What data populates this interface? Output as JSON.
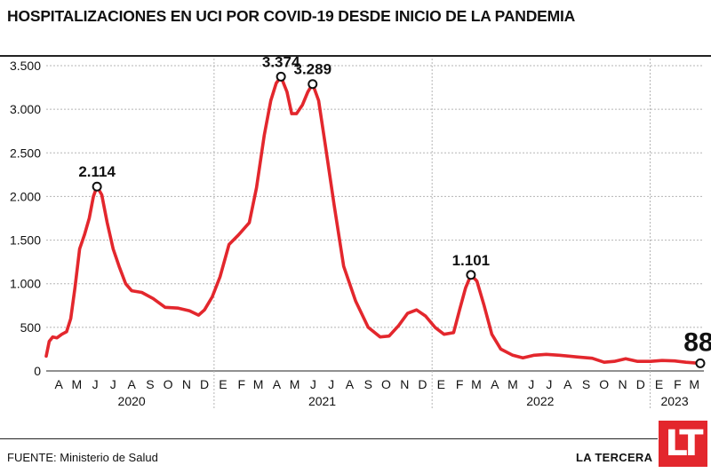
{
  "header": {
    "title": "HOSPITALIZACIONES EN UCI POR COVID-19 DESDE INICIO DE LA PANDEMIA"
  },
  "footer": {
    "source_key": "FUENTE:",
    "source_value": "Ministerio de Salud",
    "brand": "LA TERCERA",
    "logo": "LT"
  },
  "colors": {
    "line": "#e3272d",
    "grid": "#b5b5b5",
    "text": "#111111"
  },
  "chart_data": {
    "type": "line",
    "title": "HOSPITALIZACIONES EN UCI POR COVID-19 DESDE INICIO DE LA PANDEMIA",
    "ylim": [
      0,
      3500
    ],
    "yticks": [
      0,
      500,
      1000,
      1500,
      2000,
      2500,
      3000,
      3500
    ],
    "ytick_labels": [
      "0",
      "500",
      "1.000",
      "1.500",
      "2.000",
      "2.500",
      "3.000",
      "3.500"
    ],
    "xlim": [
      "2020-03-25",
      "2023-03-31"
    ],
    "month_ticks": [
      {
        "label": "A",
        "date": "2020-04-15"
      },
      {
        "label": "M",
        "date": "2020-05-15"
      },
      {
        "label": "J",
        "date": "2020-06-15"
      },
      {
        "label": "J",
        "date": "2020-07-15"
      },
      {
        "label": "A",
        "date": "2020-08-15"
      },
      {
        "label": "S",
        "date": "2020-09-15"
      },
      {
        "label": "O",
        "date": "2020-10-15"
      },
      {
        "label": "N",
        "date": "2020-11-15"
      },
      {
        "label": "D",
        "date": "2020-12-15"
      },
      {
        "label": "E",
        "date": "2021-01-15"
      },
      {
        "label": "F",
        "date": "2021-02-15"
      },
      {
        "label": "M",
        "date": "2021-03-15"
      },
      {
        "label": "A",
        "date": "2021-04-15"
      },
      {
        "label": "M",
        "date": "2021-05-15"
      },
      {
        "label": "J",
        "date": "2021-06-15"
      },
      {
        "label": "J",
        "date": "2021-07-15"
      },
      {
        "label": "A",
        "date": "2021-08-15"
      },
      {
        "label": "S",
        "date": "2021-09-15"
      },
      {
        "label": "O",
        "date": "2021-10-15"
      },
      {
        "label": "N",
        "date": "2021-11-15"
      },
      {
        "label": "D",
        "date": "2021-12-15"
      },
      {
        "label": "E",
        "date": "2022-01-15"
      },
      {
        "label": "F",
        "date": "2022-02-15"
      },
      {
        "label": "M",
        "date": "2022-03-15"
      },
      {
        "label": "A",
        "date": "2022-04-15"
      },
      {
        "label": "M",
        "date": "2022-05-15"
      },
      {
        "label": "J",
        "date": "2022-06-15"
      },
      {
        "label": "J",
        "date": "2022-07-15"
      },
      {
        "label": "A",
        "date": "2022-08-15"
      },
      {
        "label": "S",
        "date": "2022-09-15"
      },
      {
        "label": "O",
        "date": "2022-10-15"
      },
      {
        "label": "N",
        "date": "2022-11-15"
      },
      {
        "label": "D",
        "date": "2022-12-15"
      },
      {
        "label": "E",
        "date": "2023-01-15"
      },
      {
        "label": "F",
        "date": "2023-02-15"
      },
      {
        "label": "M",
        "date": "2023-03-15"
      }
    ],
    "year_labels": [
      {
        "label": "2020",
        "date": "2020-08-15"
      },
      {
        "label": "2021",
        "date": "2021-06-30"
      },
      {
        "label": "2022",
        "date": "2022-06-30"
      },
      {
        "label": "2023",
        "date": "2023-02-10"
      }
    ],
    "year_dividers": [
      "2020-12-31",
      "2021-12-31",
      "2022-12-31"
    ],
    "grid": true,
    "series": [
      {
        "points": [
          [
            "2020-03-25",
            170
          ],
          [
            "2020-03-30",
            340
          ],
          [
            "2020-04-05",
            390
          ],
          [
            "2020-04-12",
            380
          ],
          [
            "2020-04-20",
            420
          ],
          [
            "2020-04-28",
            450
          ],
          [
            "2020-05-05",
            600
          ],
          [
            "2020-05-12",
            950
          ],
          [
            "2020-05-20",
            1400
          ],
          [
            "2020-05-28",
            1560
          ],
          [
            "2020-06-05",
            1750
          ],
          [
            "2020-06-12",
            2000
          ],
          [
            "2020-06-18",
            2114
          ],
          [
            "2020-06-26",
            2020
          ],
          [
            "2020-07-05",
            1700
          ],
          [
            "2020-07-15",
            1400
          ],
          [
            "2020-07-25",
            1200
          ],
          [
            "2020-08-05",
            1000
          ],
          [
            "2020-08-15",
            920
          ],
          [
            "2020-09-01",
            900
          ],
          [
            "2020-09-20",
            830
          ],
          [
            "2020-10-10",
            730
          ],
          [
            "2020-11-01",
            720
          ],
          [
            "2020-11-20",
            690
          ],
          [
            "2020-12-05",
            640
          ],
          [
            "2020-12-15",
            700
          ],
          [
            "2020-12-28",
            850
          ],
          [
            "2021-01-10",
            1080
          ],
          [
            "2021-01-25",
            1450
          ],
          [
            "2021-02-10",
            1560
          ],
          [
            "2021-02-28",
            1700
          ],
          [
            "2021-03-12",
            2100
          ],
          [
            "2021-03-25",
            2700
          ],
          [
            "2021-04-05",
            3100
          ],
          [
            "2021-04-14",
            3300
          ],
          [
            "2021-04-22",
            3374
          ],
          [
            "2021-05-02",
            3200
          ],
          [
            "2021-05-10",
            2950
          ],
          [
            "2021-05-18",
            2950
          ],
          [
            "2021-05-28",
            3050
          ],
          [
            "2021-06-06",
            3200
          ],
          [
            "2021-06-14",
            3289
          ],
          [
            "2021-06-24",
            3100
          ],
          [
            "2021-07-05",
            2600
          ],
          [
            "2021-07-20",
            1900
          ],
          [
            "2021-08-05",
            1200
          ],
          [
            "2021-08-25",
            800
          ],
          [
            "2021-09-15",
            500
          ],
          [
            "2021-10-05",
            390
          ],
          [
            "2021-10-20",
            400
          ],
          [
            "2021-11-05",
            520
          ],
          [
            "2021-11-20",
            660
          ],
          [
            "2021-12-05",
            700
          ],
          [
            "2021-12-20",
            630
          ],
          [
            "2022-01-05",
            500
          ],
          [
            "2022-01-20",
            420
          ],
          [
            "2022-02-05",
            440
          ],
          [
            "2022-02-15",
            700
          ],
          [
            "2022-02-25",
            950
          ],
          [
            "2022-03-06",
            1101
          ],
          [
            "2022-03-16",
            1030
          ],
          [
            "2022-03-28",
            750
          ],
          [
            "2022-04-10",
            420
          ],
          [
            "2022-04-25",
            250
          ],
          [
            "2022-05-15",
            180
          ],
          [
            "2022-06-01",
            150
          ],
          [
            "2022-06-20",
            180
          ],
          [
            "2022-07-10",
            190
          ],
          [
            "2022-08-01",
            180
          ],
          [
            "2022-09-01",
            160
          ],
          [
            "2022-09-25",
            145
          ],
          [
            "2022-10-15",
            100
          ],
          [
            "2022-11-01",
            110
          ],
          [
            "2022-11-20",
            140
          ],
          [
            "2022-12-10",
            110
          ],
          [
            "2023-01-01",
            110
          ],
          [
            "2023-01-20",
            120
          ],
          [
            "2023-02-10",
            115
          ],
          [
            "2023-03-01",
            100
          ],
          [
            "2023-03-25",
            88
          ]
        ]
      }
    ],
    "annotations": [
      {
        "label": "2.114",
        "date": "2020-06-18",
        "value": 2114
      },
      {
        "label": "3.374",
        "date": "2021-04-22",
        "value": 3374
      },
      {
        "label": "3.289",
        "date": "2021-06-14",
        "value": 3289
      },
      {
        "label": "1.101",
        "date": "2022-03-06",
        "value": 1101
      },
      {
        "label": "88",
        "date": "2023-03-25",
        "value": 88
      }
    ]
  }
}
